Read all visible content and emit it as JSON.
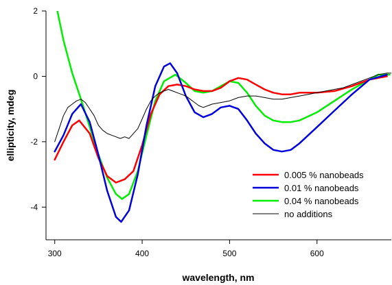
{
  "chart_data": {
    "type": "line",
    "title": "",
    "xlabel": "wavelength, nm",
    "ylabel": "ellipticity, mdeg",
    "xlim": [
      290,
      685
    ],
    "ylim": [
      -5,
      2
    ],
    "xticks": [
      300,
      400,
      500,
      600
    ],
    "yticks": [
      -4,
      -2,
      0,
      2
    ],
    "grid": false,
    "legend_position": "lower-right",
    "series": [
      {
        "name": "0.005 % nanobeads",
        "color": "#ff0000",
        "width": 2.5,
        "x": [
          300,
          310,
          320,
          328,
          340,
          350,
          360,
          370,
          380,
          390,
          400,
          410,
          420,
          430,
          440,
          450,
          460,
          470,
          480,
          490,
          500,
          510,
          520,
          530,
          540,
          550,
          560,
          570,
          580,
          590,
          600,
          620,
          640,
          660,
          680
        ],
        "y": [
          -2.55,
          -2.0,
          -1.5,
          -1.35,
          -1.75,
          -2.5,
          -3.05,
          -3.25,
          -3.15,
          -2.9,
          -2.1,
          -1.15,
          -0.55,
          -0.3,
          -0.25,
          -0.3,
          -0.4,
          -0.45,
          -0.45,
          -0.35,
          -0.15,
          -0.05,
          -0.1,
          -0.25,
          -0.4,
          -0.5,
          -0.55,
          -0.55,
          -0.5,
          -0.5,
          -0.5,
          -0.45,
          -0.3,
          -0.1,
          0.0
        ]
      },
      {
        "name": "0.01 % nanobeads",
        "color": "#0000dd",
        "width": 2.5,
        "x": [
          300,
          310,
          320,
          330,
          340,
          350,
          360,
          370,
          376,
          385,
          395,
          405,
          415,
          425,
          432,
          440,
          450,
          460,
          470,
          480,
          490,
          500,
          510,
          520,
          530,
          540,
          550,
          560,
          570,
          580,
          600,
          620,
          640,
          660,
          680
        ],
        "y": [
          -2.3,
          -1.8,
          -1.15,
          -0.85,
          -1.4,
          -2.4,
          -3.5,
          -4.3,
          -4.45,
          -4.1,
          -3.0,
          -1.5,
          -0.3,
          0.3,
          0.4,
          0.1,
          -0.6,
          -1.1,
          -1.25,
          -1.15,
          -0.95,
          -0.9,
          -1.0,
          -1.35,
          -1.75,
          -2.05,
          -2.25,
          -2.3,
          -2.25,
          -2.05,
          -1.55,
          -1.05,
          -0.55,
          -0.1,
          0.05
        ]
      },
      {
        "name": "0.04 % nanobeads",
        "color": "#00ee00",
        "width": 2.5,
        "x": [
          303,
          310,
          320,
          330,
          340,
          350,
          360,
          370,
          377,
          385,
          395,
          405,
          415,
          425,
          438,
          450,
          460,
          470,
          480,
          490,
          500,
          510,
          520,
          530,
          540,
          550,
          560,
          570,
          580,
          600,
          620,
          640,
          660,
          670,
          683
        ],
        "y": [
          2.0,
          1.1,
          0.1,
          -0.7,
          -1.55,
          -2.4,
          -3.1,
          -3.6,
          -3.75,
          -3.6,
          -2.9,
          -1.8,
          -0.75,
          -0.15,
          0.05,
          -0.2,
          -0.45,
          -0.5,
          -0.45,
          -0.3,
          -0.15,
          -0.2,
          -0.5,
          -0.9,
          -1.2,
          -1.35,
          -1.4,
          -1.4,
          -1.35,
          -1.1,
          -0.75,
          -0.4,
          -0.1,
          0.05,
          0.05
        ]
      },
      {
        "name": "no additions",
        "color": "#000000",
        "width": 1,
        "x": [
          300,
          305,
          310,
          315,
          320,
          325,
          330,
          335,
          340,
          345,
          350,
          355,
          360,
          365,
          370,
          375,
          380,
          385,
          390,
          395,
          400,
          405,
          410,
          415,
          420,
          425,
          430,
          435,
          440,
          445,
          450,
          455,
          460,
          465,
          470,
          475,
          480,
          490,
          500,
          510,
          520,
          530,
          540,
          550,
          560,
          570,
          580,
          590,
          600,
          610,
          620,
          630,
          640,
          650,
          660,
          670,
          680,
          685
        ],
        "y": [
          -2.0,
          -1.6,
          -1.2,
          -0.95,
          -0.85,
          -0.75,
          -0.7,
          -0.8,
          -1.0,
          -1.2,
          -1.5,
          -1.65,
          -1.75,
          -1.8,
          -1.85,
          -1.9,
          -1.85,
          -1.9,
          -1.75,
          -1.6,
          -1.3,
          -1.0,
          -0.75,
          -0.6,
          -0.5,
          -0.45,
          -0.4,
          -0.45,
          -0.5,
          -0.55,
          -0.6,
          -0.7,
          -0.8,
          -0.9,
          -0.95,
          -0.9,
          -0.85,
          -0.8,
          -0.75,
          -0.65,
          -0.6,
          -0.6,
          -0.65,
          -0.7,
          -0.7,
          -0.65,
          -0.6,
          -0.55,
          -0.5,
          -0.45,
          -0.4,
          -0.35,
          -0.25,
          -0.15,
          -0.05,
          0.05,
          0.1,
          0.1
        ]
      }
    ]
  }
}
